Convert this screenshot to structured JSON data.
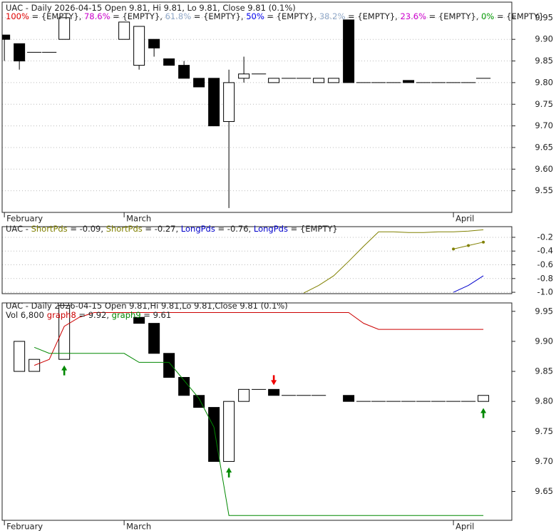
{
  "chart_data": [
    {
      "type": "candlestick",
      "title": "UAC - Daily 2026-04-15 Open 9.81, Hi 9.81, Lo 9.81, Close 9.81 (0.1%)",
      "levels": [
        {
          "name": "100%",
          "text": " = {EMPTY}, ",
          "color": "#e00000"
        },
        {
          "name": "78.6%",
          "text": " = {EMPTY}, ",
          "color": "#cc00cc"
        },
        {
          "name": "61.8%",
          "text": " = {EMPTY}, ",
          "color": "#90a8c8"
        },
        {
          "name": "50%",
          "text": " = {EMPTY}, ",
          "color": "#0000ee"
        },
        {
          "name": "38.2%",
          "text": " = {EMPTY}, ",
          "color": "#90a8c8"
        },
        {
          "name": "23.6%",
          "text": " = {EMPTY}, ",
          "color": "#cc00cc"
        },
        {
          "name": "0%",
          "text": " = {EMPTY}",
          "color": "#009900"
        }
      ],
      "x": [
        0,
        1,
        2,
        3,
        4,
        8,
        9,
        10,
        11,
        12,
        13,
        14,
        15,
        16,
        17,
        18,
        19,
        20,
        21,
        22,
        23,
        24,
        25,
        26,
        27,
        28,
        29,
        30,
        31,
        32
      ],
      "open": [
        9.91,
        9.89,
        9.87,
        9.87,
        9.9,
        9.9,
        9.84,
        9.9,
        9.855,
        9.84,
        9.81,
        9.81,
        9.71,
        9.81,
        9.82,
        9.8,
        9.81,
        9.81,
        9.8,
        9.8,
        9.945,
        9.8,
        9.8,
        9.8,
        9.805,
        9.8,
        9.8,
        9.8,
        9.8,
        9.81
      ],
      "high": [
        9.91,
        9.89,
        9.87,
        9.87,
        9.95,
        9.94,
        9.93,
        9.9,
        9.855,
        9.85,
        9.81,
        9.81,
        9.83,
        9.86,
        9.82,
        9.81,
        9.81,
        9.81,
        9.81,
        9.81,
        9.945,
        9.8,
        9.8,
        9.8,
        9.805,
        9.8,
        9.8,
        9.8,
        9.8,
        9.81
      ],
      "low": [
        9.85,
        9.83,
        9.87,
        9.87,
        9.9,
        9.9,
        9.83,
        9.86,
        9.84,
        9.81,
        9.79,
        9.7,
        9.51,
        9.8,
        9.82,
        9.8,
        9.81,
        9.81,
        9.8,
        9.8,
        9.8,
        9.8,
        9.8,
        9.8,
        9.8,
        9.8,
        9.8,
        9.8,
        9.8,
        9.81
      ],
      "close": [
        9.9,
        9.85,
        9.87,
        9.87,
        9.95,
        9.94,
        9.93,
        9.88,
        9.84,
        9.81,
        9.79,
        9.7,
        9.8,
        9.82,
        9.82,
        9.81,
        9.81,
        9.81,
        9.81,
        9.81,
        9.8,
        9.8,
        9.8,
        9.8,
        9.8,
        9.8,
        9.8,
        9.8,
        9.8,
        9.81
      ],
      "xlim": [
        -0.15,
        33.9
      ],
      "xticks": [
        {
          "value": 0,
          "label": "February"
        },
        {
          "value": 8,
          "label": "March"
        },
        {
          "value": 30,
          "label": "April"
        }
      ],
      "ylim": [
        9.5,
        9.986
      ],
      "yticks": [
        9.95,
        {
          "value": 9.9,
          "label": "9.90"
        },
        9.85,
        {
          "value": 9.8,
          "label": "9.80"
        },
        9.75,
        {
          "value": 9.7,
          "label": "9.70"
        },
        9.65,
        {
          "value": 9.6,
          "label": "9.60"
        },
        9.55
      ],
      "grid": true
    },
    {
      "type": "line",
      "title": "UAC - ",
      "series": [
        {
          "name": "ShortPds",
          "legend_text": " = -0.09, ",
          "color": "#808000",
          "markers": false,
          "x": [
            20,
            21,
            22,
            23,
            24,
            25,
            26,
            27,
            28,
            29,
            30,
            31,
            32
          ],
          "values": [
            -1.01,
            -0.9,
            -0.76,
            -0.55,
            -0.33,
            -0.12,
            -0.12,
            -0.13,
            -0.13,
            -0.12,
            -0.12,
            -0.11,
            -0.09
          ]
        },
        {
          "name": "ShortPds",
          "legend_text": " = -0.27, ",
          "color": "#808000",
          "markers": true,
          "x": [
            30,
            31,
            32
          ],
          "values": [
            -0.37,
            -0.32,
            -0.27
          ]
        },
        {
          "name": "LongPds",
          "legend_text": " = -0.76, ",
          "color": "#0000cc",
          "markers": false,
          "x": [
            30,
            31,
            32
          ],
          "values": [
            -1.0,
            -0.9,
            -0.76
          ]
        },
        {
          "name": "LongPds",
          "legend_text": " = {EMPTY}",
          "color": "#0000cc",
          "markers": false,
          "x": [],
          "values": []
        }
      ],
      "xlim": [
        -0.15,
        33.9
      ],
      "ylim": [
        -1.02,
        -0.045
      ],
      "yticks": [
        -0.2,
        -0.4,
        -0.6,
        -0.8,
        {
          "value": -1,
          "label": "-1.0"
        }
      ],
      "grid": true
    },
    {
      "type": "candlestick",
      "title": "UAC - Daily 2026-04-15 Open 9.81,Hi 9.81,Lo 9.81,Close 9.81 (0.1%)",
      "volume": {
        "value": 6800,
        "label": "Vol 6,800"
      },
      "x": [
        1,
        2,
        4,
        9,
        10,
        11,
        12,
        13,
        14,
        15,
        16,
        17,
        18,
        19,
        20,
        21,
        23,
        24,
        25,
        26,
        27,
        28,
        29,
        30,
        31,
        32
      ],
      "open": [
        9.85,
        9.85,
        9.87,
        9.94,
        9.93,
        9.88,
        9.84,
        9.81,
        9.79,
        9.7,
        9.8,
        9.82,
        9.82,
        9.81,
        9.81,
        9.81,
        9.81,
        9.8,
        9.8,
        9.8,
        9.8,
        9.8,
        9.8,
        9.8,
        9.8,
        9.8
      ],
      "close": [
        9.9,
        9.87,
        9.96,
        9.93,
        9.88,
        9.84,
        9.81,
        9.79,
        9.7,
        9.8,
        9.82,
        9.82,
        9.81,
        9.81,
        9.81,
        9.81,
        9.8,
        9.8,
        9.8,
        9.8,
        9.8,
        9.8,
        9.8,
        9.8,
        9.8,
        9.81
      ],
      "series": [
        {
          "name": "graph8",
          "legend_text": " = 9.92, ",
          "color": "#cc0000",
          "markers": false,
          "x": [
            2,
            3,
            4,
            5,
            6,
            8,
            23,
            24,
            25,
            32
          ],
          "values": [
            9.86,
            9.87,
            9.925,
            9.94,
            9.948,
            9.948,
            9.948,
            9.93,
            9.92,
            9.92
          ]
        },
        {
          "name": "graph9",
          "legend_text": " = 9.61",
          "color": "#008800",
          "markers": false,
          "x": [
            2,
            3,
            4,
            8,
            9,
            11,
            12,
            13,
            14,
            15,
            32
          ],
          "values": [
            9.89,
            9.88,
            9.88,
            9.88,
            9.865,
            9.865,
            9.835,
            9.805,
            9.757,
            9.61,
            9.61
          ]
        }
      ],
      "signals": [
        {
          "x": 4,
          "y": 9.86,
          "direction": "up",
          "color": "#008800"
        },
        {
          "x": 15,
          "y": 9.69,
          "direction": "up",
          "color": "#008800"
        },
        {
          "x": 18,
          "y": 9.827,
          "direction": "down",
          "color": "#ee0000"
        },
        {
          "x": 32,
          "y": 9.789,
          "direction": "up",
          "color": "#008800"
        }
      ],
      "xlim": [
        -0.15,
        33.9
      ],
      "xticks": [
        {
          "value": 0,
          "label": "February"
        },
        {
          "value": 8,
          "label": "March"
        },
        {
          "value": 30,
          "label": "April"
        }
      ],
      "ylim": [
        9.602,
        9.964
      ],
      "yticks": [
        9.95,
        {
          "value": 9.9,
          "label": "9.90"
        },
        9.85,
        {
          "value": 9.8,
          "label": "9.80"
        },
        9.75,
        {
          "value": 9.7,
          "label": "9.70"
        },
        9.65
      ],
      "grid": false
    }
  ]
}
